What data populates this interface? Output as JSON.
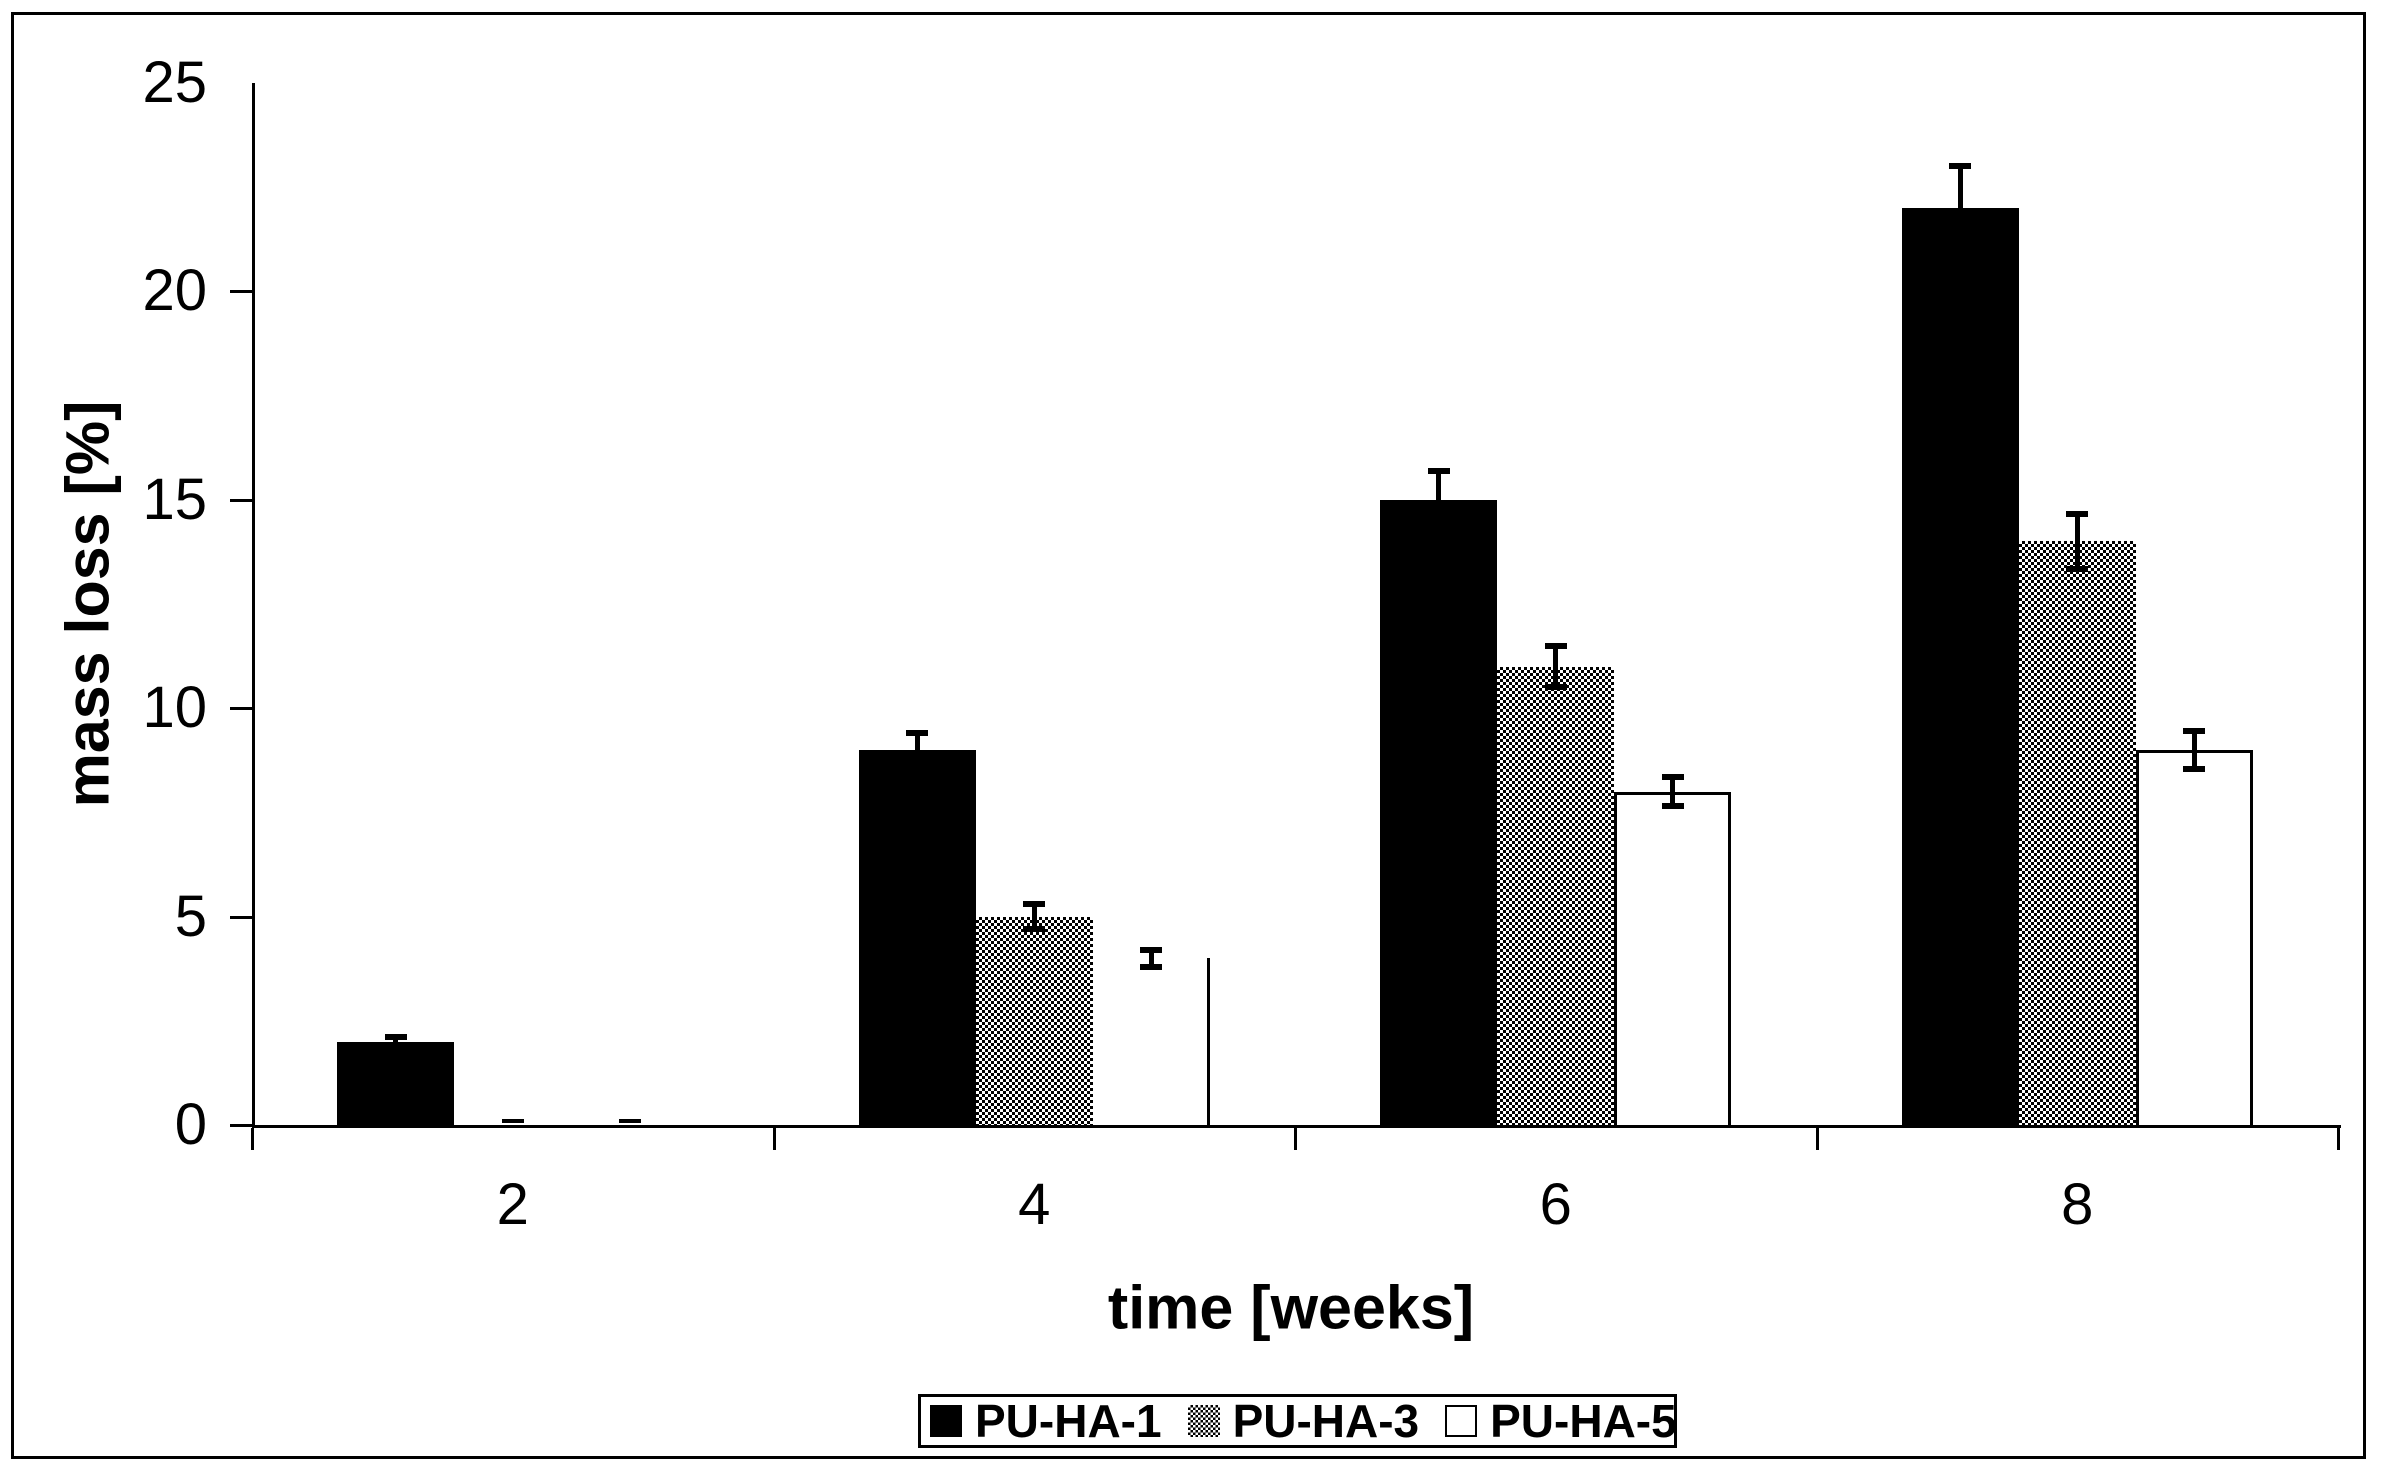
{
  "chart_data": {
    "type": "bar",
    "title": "",
    "xlabel": "time [weeks]",
    "ylabel": "mass loss [%]",
    "categories": [
      "2",
      "4",
      "6",
      "8"
    ],
    "series": [
      {
        "name": "PU-HA-1",
        "fill": "black",
        "values": [
          2,
          9,
          15,
          22
        ],
        "errors": [
          0.1,
          0.4,
          0.7,
          1.0
        ]
      },
      {
        "name": "PU-HA-3",
        "fill": "gray-halftone",
        "values": [
          0,
          5,
          11,
          14
        ],
        "errors": [
          0.1,
          0.3,
          0.5,
          0.65
        ]
      },
      {
        "name": "PU-HA-5",
        "fill": "white",
        "values": [
          0,
          4,
          8,
          9
        ],
        "errors": [
          0.1,
          0.2,
          0.35,
          0.45
        ]
      }
    ],
    "ylim": [
      0,
      25
    ],
    "ytick_step": 5,
    "ytick_labels": [
      "0",
      "5",
      "10",
      "15",
      "20",
      "25"
    ],
    "grid": false,
    "error_bars": true,
    "legend_position": "bottom",
    "legend_labels": [
      "PU-HA-1",
      "PU-HA-3",
      "PU-HA-5"
    ],
    "rendering_notes": [
      {
        "series_index": 1,
        "category_index": 0,
        "render": "cap-only"
      },
      {
        "series_index": 2,
        "category_index": 0,
        "render": "cap-only"
      },
      {
        "series_index": 2,
        "category_index": 1,
        "render": "right-edge-only"
      }
    ]
  },
  "colors": {
    "foreground": "#000000",
    "background": "#ffffff"
  }
}
